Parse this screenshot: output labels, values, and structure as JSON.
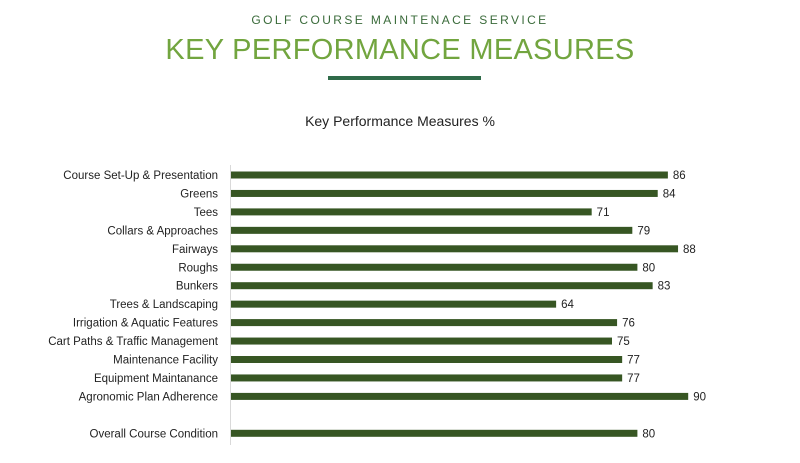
{
  "header": {
    "subtitle": "GOLF COURSE MAINTENACE SERVICE",
    "title": "KEY PERFORMANCE MEASURES"
  },
  "colors": {
    "bar": "#375623",
    "title": "#72a53f",
    "subtitle": "#3a6b3a",
    "rule": "#2f6b49"
  },
  "chart_data": {
    "type": "bar",
    "orientation": "horizontal",
    "title": "Key Performance Measures %",
    "xlabel": "",
    "ylabel": "",
    "xlim": [
      0,
      100
    ],
    "grid": false,
    "legend": "none",
    "categories": [
      "Course Set-Up & Presentation",
      "Greens",
      "Tees",
      "Collars & Approaches",
      "Fairways",
      "Roughs",
      "Bunkers",
      "Trees & Landscaping",
      "Irrigation & Aquatic Features",
      "Cart Paths & Traffic Management",
      "Maintenance Facility ",
      "Equipment Maintanance",
      "Agronomic Plan Adherence",
      "",
      "Overall Course Condition"
    ],
    "values": [
      86,
      84,
      71,
      79,
      88,
      80,
      83,
      64,
      76,
      75,
      77,
      77,
      90,
      null,
      80
    ]
  }
}
